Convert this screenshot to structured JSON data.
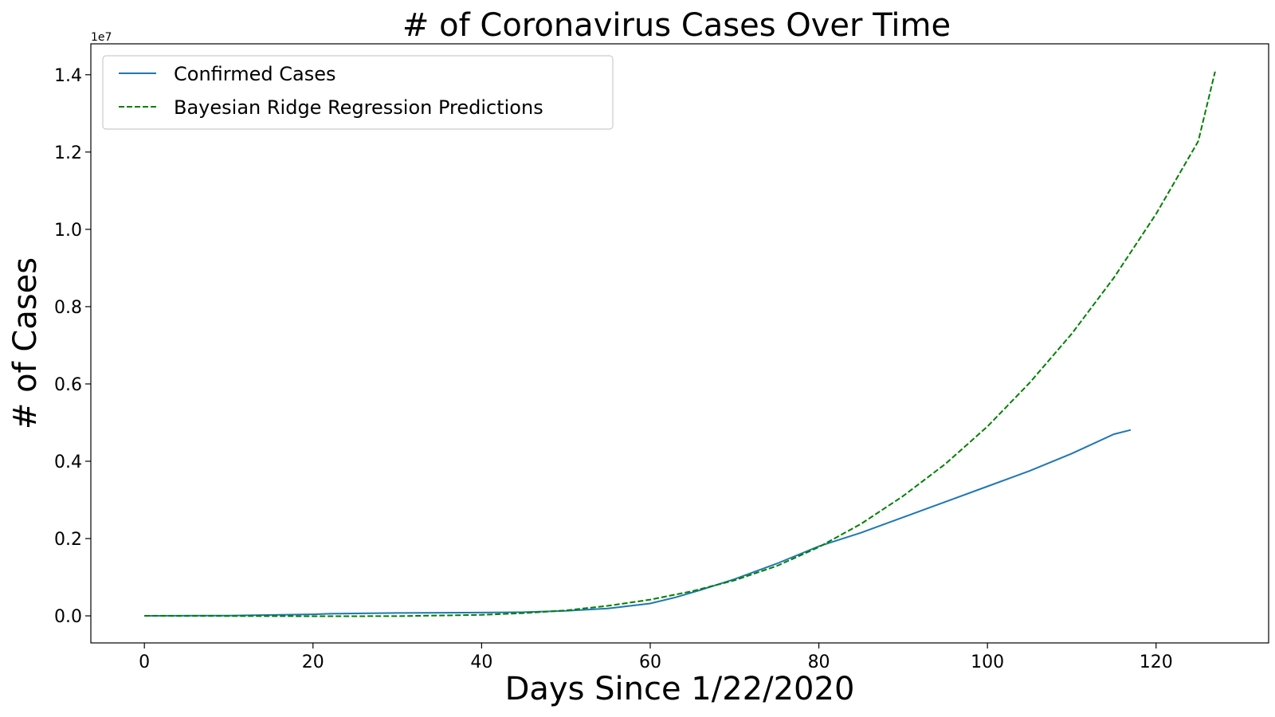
{
  "chart_data": {
    "type": "line",
    "title": "# of Coronavirus Cases Over Time",
    "xlabel": "Days Since 1/22/2020",
    "ylabel": "# of Cases",
    "offset_text": "1e7",
    "xlim": [
      -6.35,
      133.35
    ],
    "ylim": [
      -0.07,
      1.48
    ],
    "x_ticks": [
      0,
      20,
      40,
      60,
      80,
      100,
      120
    ],
    "y_ticks": [
      0.0,
      0.2,
      0.4,
      0.6,
      0.8,
      1.0,
      1.2,
      1.4
    ],
    "y_tick_labels": [
      "0.0",
      "0.2",
      "0.4",
      "0.6",
      "0.8",
      "1.0",
      "1.2",
      "1.4"
    ],
    "grid": false,
    "legend_position": "top-left",
    "series": [
      {
        "name": "Confirmed Cases",
        "color": "#1f77b4",
        "style": "solid",
        "x": [
          0,
          10,
          20,
          22,
          30,
          40,
          45,
          50,
          55,
          60,
          63,
          66,
          70,
          75,
          80,
          85,
          90,
          95,
          100,
          105,
          110,
          115,
          117
        ],
        "y": [
          0.0,
          0.0008,
          0.004,
          0.0055,
          0.0075,
          0.0085,
          0.0095,
          0.013,
          0.019,
          0.032,
          0.048,
          0.067,
          0.095,
          0.135,
          0.18,
          0.215,
          0.255,
          0.295,
          0.335,
          0.375,
          0.42,
          0.47,
          0.481
        ]
      },
      {
        "name": "Bayesian Ridge Regression Predictions",
        "color": "#008000",
        "style": "dashed",
        "x": [
          0,
          10,
          20,
          30,
          40,
          45,
          50,
          55,
          60,
          65,
          70,
          75,
          80,
          85,
          90,
          95,
          100,
          105,
          110,
          115,
          120,
          125,
          127
        ],
        "y": [
          0.0,
          -0.0003,
          -0.001,
          -0.0008,
          0.0025,
          0.007,
          0.014,
          0.026,
          0.042,
          0.064,
          0.092,
          0.129,
          0.178,
          0.238,
          0.31,
          0.393,
          0.49,
          0.603,
          0.73,
          0.875,
          1.04,
          1.228,
          1.408
        ]
      }
    ]
  }
}
